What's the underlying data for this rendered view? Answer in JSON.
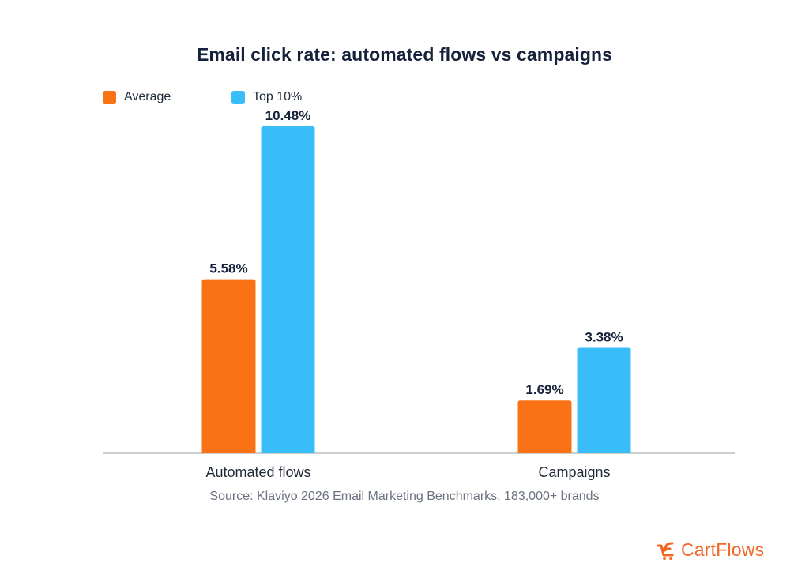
{
  "chart_data": {
    "type": "bar",
    "title": "Email click rate: automated flows vs campaigns",
    "categories": [
      "Automated flows",
      "Campaigns"
    ],
    "series": [
      {
        "name": "Average",
        "values": [
          5.58,
          1.69
        ],
        "labels": [
          "5.58%",
          "1.69%"
        ],
        "color": "#f97316"
      },
      {
        "name": "Top 10%",
        "values": [
          10.48,
          3.38
        ],
        "labels": [
          "10.48%",
          "3.38%"
        ],
        "color": "#38bdf8"
      }
    ],
    "ylim": [
      0,
      10.48
    ],
    "grid": false,
    "legend": "top-left",
    "xlabel": "",
    "ylabel": ""
  },
  "source": "Source: Klaviyo 2026 Email Marketing Benchmarks, 183,000+ brands",
  "brand": {
    "name": "CartFlows",
    "color": "#f26522"
  },
  "colors": {
    "axis": "#bdbdbd",
    "text": "#16213a"
  }
}
